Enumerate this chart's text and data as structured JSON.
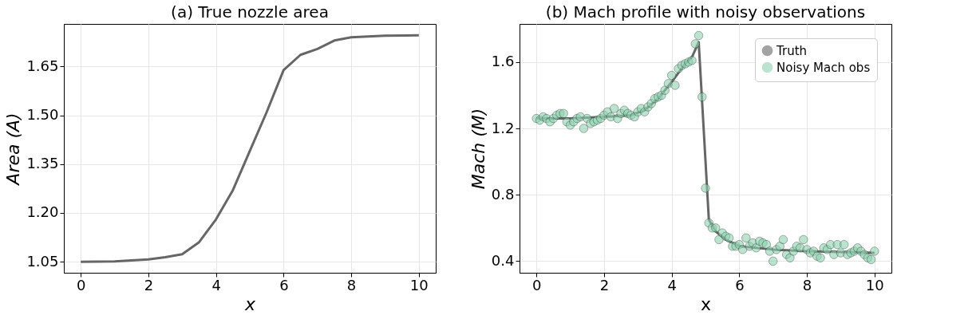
{
  "chart_data": [
    {
      "type": "line",
      "title": "(a) True nozzle area",
      "xlabel": "x",
      "ylabel": "Area (A)",
      "xlim": [
        -0.5,
        10.5
      ],
      "ylim": [
        1.016,
        1.781
      ],
      "xticks": [
        0,
        2,
        4,
        6,
        8,
        10
      ],
      "yticks": [
        {
          "value": 1.05,
          "label": "1.05"
        },
        {
          "value": 1.2,
          "label": "1.20"
        },
        {
          "value": 1.35,
          "label": "1.35"
        },
        {
          "value": 1.5,
          "label": "1.50"
        },
        {
          "value": 1.65,
          "label": "1.65"
        }
      ],
      "grid": true,
      "legend": false,
      "series": [
        {
          "color": "#666666",
          "x": [
            0,
            1,
            2,
            2.5,
            3,
            3.5,
            4,
            4.5,
            5,
            5.5,
            6,
            6.5,
            7,
            7.5,
            8,
            9,
            10
          ],
          "values": [
            1.05,
            1.051,
            1.057,
            1.064,
            1.073,
            1.11,
            1.18,
            1.27,
            1.39,
            1.51,
            1.639,
            1.686,
            1.704,
            1.73,
            1.74,
            1.745,
            1.746
          ]
        }
      ]
    },
    {
      "type": "line",
      "title": "(b) Mach profile with noisy observations",
      "xlabel": "x",
      "ylabel": "Mach (M)",
      "xlim": [
        -0.5,
        10.5
      ],
      "ylim": [
        0.33,
        1.83
      ],
      "xticks": [
        0,
        2,
        4,
        6,
        8,
        10
      ],
      "yticks": [
        0.4,
        0.8,
        1.2,
        1.6
      ],
      "grid": true,
      "legend": "top right",
      "series": [
        {
          "name": "Truth",
          "type": "line",
          "color": "#666666",
          "x": [
            0,
            1,
            2,
            2.8,
            3.2,
            3.6,
            4.0,
            4.4,
            4.6,
            4.8,
            5.1,
            5.3,
            5.6,
            6,
            7,
            8,
            9,
            10
          ],
          "values": [
            1.26,
            1.26,
            1.27,
            1.28,
            1.31,
            1.38,
            1.48,
            1.59,
            1.63,
            1.72,
            0.65,
            0.58,
            0.53,
            0.49,
            0.47,
            0.46,
            0.455,
            0.45
          ]
        },
        {
          "name": "Noisy Mach obs",
          "type": "scatter",
          "color": "#8fd1b0",
          "x": [
            0,
            0.1,
            0.2,
            0.3,
            0.4,
            0.5,
            0.6,
            0.7,
            0.8,
            0.9,
            1.0,
            1.1,
            1.2,
            1.3,
            1.4,
            1.5,
            1.6,
            1.7,
            1.8,
            1.9,
            2.0,
            2.1,
            2.2,
            2.3,
            2.4,
            2.5,
            2.6,
            2.7,
            2.8,
            2.9,
            3.0,
            3.1,
            3.2,
            3.3,
            3.4,
            3.5,
            3.6,
            3.7,
            3.8,
            3.9,
            4.0,
            4.1,
            4.2,
            4.3,
            4.4,
            4.5,
            4.6,
            4.7,
            4.8,
            4.9,
            5.0,
            5.1,
            5.2,
            5.3,
            5.4,
            5.5,
            5.6,
            5.7,
            5.8,
            5.9,
            6.0,
            6.1,
            6.2,
            6.3,
            6.4,
            6.5,
            6.6,
            6.7,
            6.8,
            6.9,
            7.0,
            7.1,
            7.2,
            7.3,
            7.4,
            7.5,
            7.6,
            7.7,
            7.8,
            7.9,
            8.0,
            8.1,
            8.2,
            8.3,
            8.4,
            8.5,
            8.6,
            8.7,
            8.8,
            8.9,
            9.0,
            9.1,
            9.2,
            9.3,
            9.4,
            9.5,
            9.6,
            9.7,
            9.8,
            9.9,
            10.0
          ],
          "values": [
            1.26,
            1.25,
            1.27,
            1.26,
            1.24,
            1.26,
            1.28,
            1.29,
            1.29,
            1.24,
            1.22,
            1.24,
            1.26,
            1.27,
            1.2,
            1.26,
            1.23,
            1.24,
            1.25,
            1.26,
            1.28,
            1.3,
            1.27,
            1.32,
            1.26,
            1.29,
            1.31,
            1.29,
            1.28,
            1.27,
            1.3,
            1.32,
            1.3,
            1.33,
            1.35,
            1.38,
            1.39,
            1.4,
            1.43,
            1.47,
            1.52,
            1.46,
            1.56,
            1.58,
            1.59,
            1.6,
            1.61,
            1.71,
            1.76,
            1.39,
            0.84,
            0.63,
            0.6,
            0.6,
            0.53,
            0.57,
            0.55,
            0.54,
            0.49,
            0.49,
            0.5,
            0.47,
            0.54,
            0.49,
            0.51,
            0.48,
            0.52,
            0.51,
            0.5,
            0.46,
            0.4,
            0.47,
            0.49,
            0.53,
            0.44,
            0.42,
            0.46,
            0.49,
            0.48,
            0.53,
            0.47,
            0.45,
            0.46,
            0.43,
            0.42,
            0.48,
            0.47,
            0.5,
            0.44,
            0.5,
            0.45,
            0.5,
            0.44,
            0.45,
            0.46,
            0.48,
            0.46,
            0.44,
            0.42,
            0.41,
            0.46
          ]
        }
      ]
    }
  ]
}
